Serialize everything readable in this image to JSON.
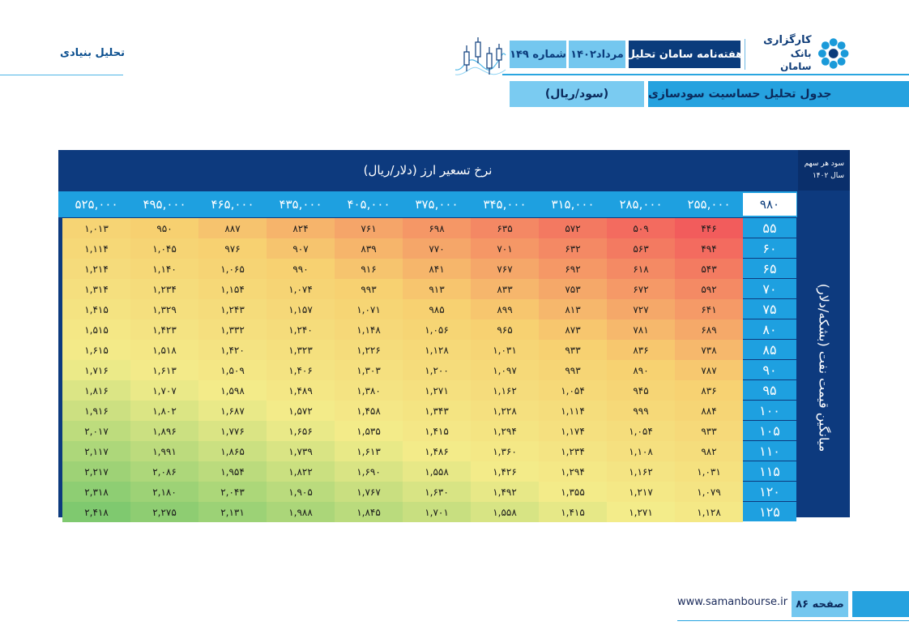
{
  "header": {
    "brand_line1": "کارگزاری",
    "brand_line2": "بانک سامان",
    "newsletter": "هفته‌نامه سامان تحلیل",
    "date": "مرداد۱۴۰۲",
    "issue": "شماره ۱۴۹",
    "section": "تحلیل بنیادی",
    "title": "جدول تحلیل حساسیت سودسازی",
    "unit": "(سود/ریال)"
  },
  "table": {
    "title": "نرخ تسعیر ارز (دلار/ریال)",
    "corner_line1": "سود هر سهم",
    "corner_line2": "سال ۱۴۰۲",
    "corner_value": "۹۸۰",
    "side_label": "میانگین قیمت نفت (بشکه/دلار)",
    "columns": [
      "۲۵۵,۰۰۰",
      "۲۸۵,۰۰۰",
      "۳۱۵,۰۰۰",
      "۳۴۵,۰۰۰",
      "۳۷۵,۰۰۰",
      "۴۰۵,۰۰۰",
      "۴۳۵,۰۰۰",
      "۴۶۵,۰۰۰",
      "۴۹۵,۰۰۰",
      "۵۲۵,۰۰۰"
    ],
    "rows": [
      {
        "label": "۵۵",
        "values": [
          "۴۴۶",
          "۵۰۹",
          "۵۷۲",
          "۶۳۵",
          "۶۹۸",
          "۷۶۱",
          "۸۲۴",
          "۸۸۷",
          "۹۵۰",
          "۱,۰۱۳"
        ]
      },
      {
        "label": "۶۰",
        "values": [
          "۴۹۴",
          "۵۶۳",
          "۶۳۲",
          "۷۰۱",
          "۷۷۰",
          "۸۳۹",
          "۹۰۷",
          "۹۷۶",
          "۱,۰۴۵",
          "۱,۱۱۴"
        ]
      },
      {
        "label": "۶۵",
        "values": [
          "۵۴۳",
          "۶۱۸",
          "۶۹۲",
          "۷۶۷",
          "۸۴۱",
          "۹۱۶",
          "۹۹۰",
          "۱,۰۶۵",
          "۱,۱۴۰",
          "۱,۲۱۴"
        ]
      },
      {
        "label": "۷۰",
        "values": [
          "۵۹۲",
          "۶۷۲",
          "۷۵۳",
          "۸۳۳",
          "۹۱۳",
          "۹۹۳",
          "۱,۰۷۴",
          "۱,۱۵۴",
          "۱,۲۳۴",
          "۱,۳۱۴"
        ]
      },
      {
        "label": "۷۵",
        "values": [
          "۶۴۱",
          "۷۲۷",
          "۸۱۳",
          "۸۹۹",
          "۹۸۵",
          "۱,۰۷۱",
          "۱,۱۵۷",
          "۱,۲۴۳",
          "۱,۳۲۹",
          "۱,۴۱۵"
        ]
      },
      {
        "label": "۸۰",
        "values": [
          "۶۸۹",
          "۷۸۱",
          "۸۷۳",
          "۹۶۵",
          "۱,۰۵۶",
          "۱,۱۴۸",
          "۱,۲۴۰",
          "۱,۳۳۲",
          "۱,۴۲۳",
          "۱,۵۱۵"
        ]
      },
      {
        "label": "۸۵",
        "values": [
          "۷۳۸",
          "۸۳۶",
          "۹۳۳",
          "۱,۰۳۱",
          "۱,۱۲۸",
          "۱,۲۲۶",
          "۱,۳۲۳",
          "۱,۴۲۰",
          "۱,۵۱۸",
          "۱,۶۱۵"
        ]
      },
      {
        "label": "۹۰",
        "values": [
          "۷۸۷",
          "۸۹۰",
          "۹۹۳",
          "۱,۰۹۷",
          "۱,۲۰۰",
          "۱,۳۰۳",
          "۱,۴۰۶",
          "۱,۵۰۹",
          "۱,۶۱۳",
          "۱,۷۱۶"
        ]
      },
      {
        "label": "۹۵",
        "values": [
          "۸۳۶",
          "۹۴۵",
          "۱,۰۵۴",
          "۱,۱۶۲",
          "۱,۲۷۱",
          "۱,۳۸۰",
          "۱,۴۸۹",
          "۱,۵۹۸",
          "۱,۷۰۷",
          "۱,۸۱۶"
        ]
      },
      {
        "label": "۱۰۰",
        "values": [
          "۸۸۴",
          "۹۹۹",
          "۱,۱۱۴",
          "۱,۲۲۸",
          "۱,۳۴۳",
          "۱,۴۵۸",
          "۱,۵۷۲",
          "۱,۶۸۷",
          "۱,۸۰۲",
          "۱,۹۱۶"
        ]
      },
      {
        "label": "۱۰۵",
        "values": [
          "۹۳۳",
          "۱,۰۵۴",
          "۱,۱۷۴",
          "۱,۲۹۴",
          "۱,۴۱۵",
          "۱,۵۳۵",
          "۱,۶۵۶",
          "۱,۷۷۶",
          "۱,۸۹۶",
          "۲,۰۱۷"
        ]
      },
      {
        "label": "۱۱۰",
        "values": [
          "۹۸۲",
          "۱,۱۰۸",
          "۱,۲۳۴",
          "۱,۳۶۰",
          "۱,۴۸۶",
          "۱,۶۱۳",
          "۱,۷۳۹",
          "۱,۸۶۵",
          "۱,۹۹۱",
          "۲,۱۱۷"
        ]
      },
      {
        "label": "۱۱۵",
        "values": [
          "۱,۰۳۱",
          "۱,۱۶۲",
          "۱,۲۹۴",
          "۱,۴۲۶",
          "۱,۵۵۸",
          "۱,۶۹۰",
          "۱,۸۲۲",
          "۱,۹۵۴",
          "۲,۰۸۶",
          "۲,۲۱۷"
        ]
      },
      {
        "label": "۱۲۰",
        "values": [
          "۱,۰۷۹",
          "۱,۲۱۷",
          "۱,۳۵۵",
          "۱,۴۹۲",
          "۱,۶۳۰",
          "۱,۷۶۷",
          "۱,۹۰۵",
          "۲,۰۴۳",
          "۲,۱۸۰",
          "۲,۳۱۸"
        ]
      },
      {
        "label": "۱۲۵",
        "values": [
          "۱,۱۲۸",
          "۱,۲۷۱",
          "۱,۴۱۵",
          "۱,۵۵۸",
          "۱,۷۰۱",
          "۱,۸۴۵",
          "۱,۹۸۸",
          "۲,۱۳۱",
          "۲,۲۷۵",
          "۲,۴۱۸"
        ]
      }
    ],
    "heat_colors": [
      "#f25c5c",
      "#f7d070",
      "#f3ec8a",
      "#7fc96f"
    ]
  },
  "footer": {
    "url": "www.samanbourse.ir",
    "page": "صفحه ۸۶"
  },
  "colors": {
    "navy": "#0b3c7c",
    "blue": "#26a2df",
    "light_blue": "#74c7ef"
  }
}
